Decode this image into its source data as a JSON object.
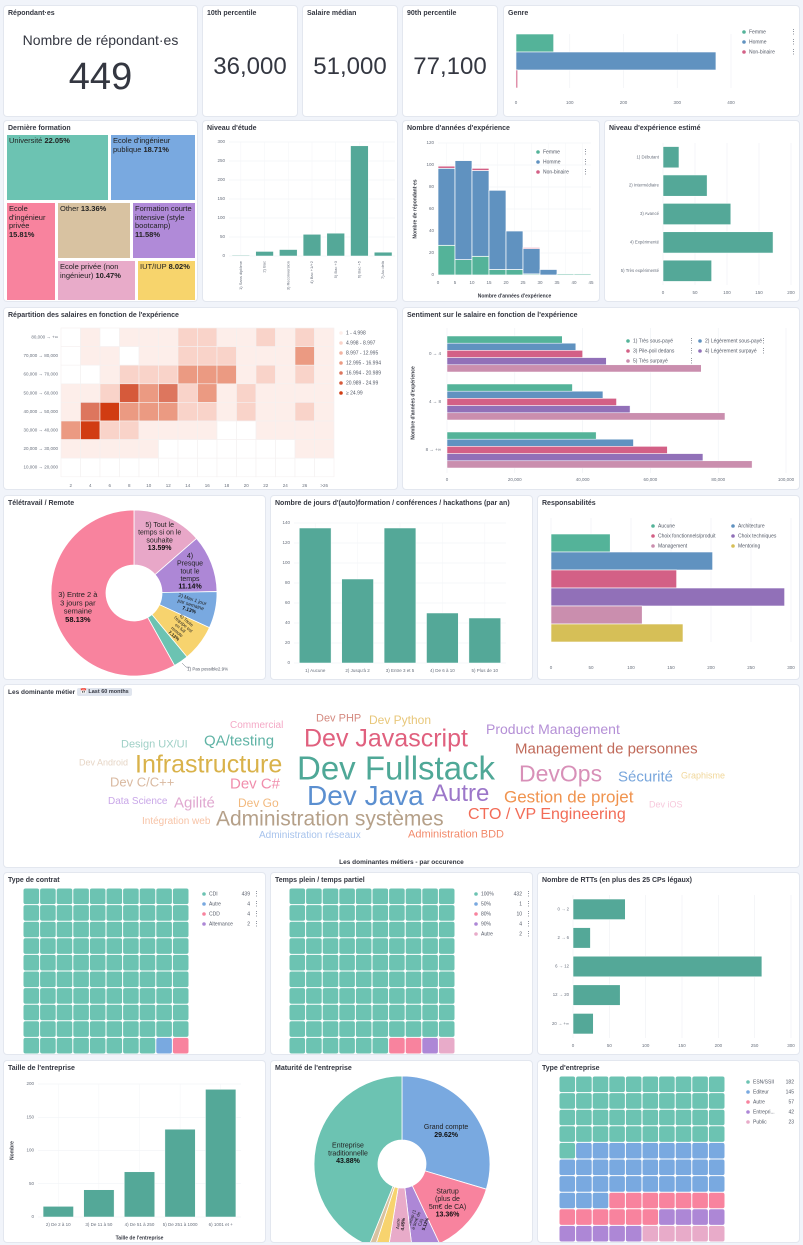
{
  "kpi": {
    "respondents_title": "Répondant·es",
    "respondents_label": "Nombre de répondant·es",
    "respondents_value": "449",
    "p10_title": "10th percentile",
    "p10_value": "36,000",
    "median_title": "Salaire médian",
    "median_value": "51,000",
    "p90_title": "90th percentile",
    "p90_value": "77,100"
  },
  "wordcloud": {
    "title": "Les dominante métier",
    "badge": "Last 60 months",
    "caption": "Les dominantes métiers - par occurence",
    "words": [
      {
        "text": "Commercial",
        "color": "#f4a9c6"
      },
      {
        "text": "Dev PHP",
        "color": "#d48a80"
      },
      {
        "text": "Dev Python",
        "color": "#e8c77a"
      },
      {
        "text": "Product Management",
        "color": "#b48fd6"
      },
      {
        "text": "Dev Javascript",
        "color": "#e0607e"
      },
      {
        "text": "QA/testing",
        "color": "#5fb3a5"
      },
      {
        "text": "Management de personnes",
        "color": "#c06a5a"
      },
      {
        "text": "Design UX/UI",
        "color": "#9fd0c6"
      },
      {
        "text": "Dev Android",
        "color": "#e6d5c5"
      },
      {
        "text": "Infrastructure",
        "color": "#d9b24a"
      },
      {
        "text": "Dev Fullstack",
        "color": "#4fa897"
      },
      {
        "text": "DevOps",
        "color": "#d890b8"
      },
      {
        "text": "Sécurité",
        "color": "#78a6dc"
      },
      {
        "text": "Graphisme",
        "color": "#f1d79a"
      },
      {
        "text": "Dev C/C++",
        "color": "#d9b9a0"
      },
      {
        "text": "Dev C#",
        "color": "#f08eac"
      },
      {
        "text": "Dev Java",
        "color": "#5b8fd0"
      },
      {
        "text": "Autre",
        "color": "#9c77c9"
      },
      {
        "text": "Gestion de projet",
        "color": "#f0934e"
      },
      {
        "text": "Data Science",
        "color": "#c9a7e8"
      },
      {
        "text": "Agilité",
        "color": "#e0a8d0"
      },
      {
        "text": "Dev Go",
        "color": "#f2b97e"
      },
      {
        "text": "Dev iOS",
        "color": "#f7c9dc"
      },
      {
        "text": "Administration systèmes",
        "color": "#b5a089"
      },
      {
        "text": "CTO / VP Engineering",
        "color": "#f26c57"
      },
      {
        "text": "Intégration web",
        "color": "#f7c3a6"
      },
      {
        "text": "Administration réseaux",
        "color": "#a7c3ec"
      },
      {
        "text": "Administration BDD",
        "color": "#f28a6b"
      }
    ]
  },
  "chart_data": [
    {
      "type": "bar",
      "orientation": "horizontal",
      "title": "Genre",
      "categories": [
        "Femme",
        "Homme",
        "Non-binaire"
      ],
      "values": [
        70,
        372,
        3
      ],
      "colors": [
        "#54B399",
        "#6092C0",
        "#D36086"
      ],
      "xlim": [
        0,
        400
      ],
      "xtick": 100,
      "legend": "right",
      "grid": true
    },
    {
      "type": "treemap",
      "title": "Dernière formation",
      "categories": [
        "Université",
        "Ecole d'ingénieur publique",
        "Ecole d'ingénieur privée",
        "Other",
        "Formation courte intensive (style bootcamp)",
        "Ecole privée (non ingénieur)",
        "IUT/IUP"
      ],
      "values": [
        "22.05%",
        "18.71%",
        "15.81%",
        "13.36%",
        "11.58%",
        "10.47%",
        "8.02%"
      ],
      "colors": [
        "#6cc3b2",
        "#79a9e0",
        "#f8839e",
        "#d8c2a1",
        "#b08ad8",
        "#e8abc9",
        "#f7d46c"
      ]
    },
    {
      "type": "bar",
      "title": "Niveau d'étude",
      "categories": [
        "1) Sans diplôme",
        "2) Bac",
        "3) Reconversion",
        "4) Bac +1/+2",
        "5) Bac +3",
        "6) Bac +5",
        "7) Au delà"
      ],
      "values": [
        2,
        12,
        17,
        57,
        60,
        290,
        10
      ],
      "color": "#54a898",
      "ylim": [
        0,
        300
      ],
      "ytick": 50,
      "grid": true
    },
    {
      "type": "bar",
      "stacked": true,
      "title": "Nombre d'années d'expérience",
      "xlabel": "Nombre d'années d'expérience",
      "ylabel": "Nombre de répondant·es",
      "x_ticks": [
        0,
        5,
        10,
        15,
        20,
        25,
        30,
        35,
        40,
        45
      ],
      "series": [
        {
          "name": "Femme",
          "color": "#54B399",
          "values": [
            27,
            14,
            17,
            5,
            5,
            1,
            0,
            1,
            1
          ]
        },
        {
          "name": "Homme",
          "color": "#6092C0",
          "values": [
            70,
            90,
            78,
            72,
            35,
            23,
            5,
            0,
            0
          ]
        },
        {
          "name": "Non-binaire",
          "color": "#D36086",
          "values": [
            2,
            0,
            2,
            0,
            0,
            1,
            0,
            0,
            0
          ]
        }
      ],
      "ylim": [
        0,
        120
      ],
      "ytick": 20,
      "legend": "top-right",
      "grid": true
    },
    {
      "type": "bar",
      "orientation": "horizontal",
      "title": "Niveau d'expérience estimé",
      "categories": [
        "1) Débutant",
        "2) Intermédiaire",
        "3) Avancé",
        "4) Expérimenté",
        "5) Très expérimenté"
      ],
      "values": [
        25,
        69,
        106,
        172,
        76
      ],
      "color": "#54a898",
      "xlim": [
        0,
        200
      ],
      "xtick": 50,
      "grid": true
    },
    {
      "type": "heatmap",
      "title": "Répartition des salaires en fonction de l'expérience",
      "x_categories": [
        "2",
        "4",
        "6",
        "8",
        "10",
        "12",
        "14",
        "16",
        "18",
        "20",
        "22",
        "24",
        "26",
        ">26"
      ],
      "y_categories": [
        "80,000 → +∞",
        "70,000 → 80,000",
        "60,000 → 70,000",
        "50,000 → 60,000",
        "40,000 → 50,000",
        "30,000 → 40,000",
        "20,000 → 30,000",
        "10,000 → 20,000"
      ],
      "legend_buckets": [
        "1 - 4.998",
        "4.998 - 8.997",
        "8.997 - 12.995",
        "12.995 - 16.994",
        "16.994 - 20.989",
        "20.989 - 24.99",
        "≥ 24.99"
      ],
      "bucket_colors": [
        "#fdeeea",
        "#f9d3c9",
        "#f2b3a1",
        "#eb9a82",
        "#dd765e",
        "#d65a3b",
        "#d13c12"
      ],
      "bucket_index": [
        [
          0,
          1,
          0,
          1,
          1,
          1,
          2,
          2,
          1,
          1,
          2,
          1,
          2,
          1
        ],
        [
          0,
          1,
          1,
          0,
          1,
          1,
          2,
          2,
          2,
          1,
          1,
          1,
          4,
          1
        ],
        [
          0,
          0,
          1,
          2,
          2,
          2,
          4,
          4,
          4,
          1,
          2,
          1,
          2,
          1
        ],
        [
          1,
          1,
          2,
          6,
          4,
          5,
          2,
          4,
          1,
          2,
          1,
          1,
          1,
          1
        ],
        [
          1,
          5,
          7,
          4,
          4,
          4,
          2,
          2,
          1,
          2,
          1,
          1,
          2,
          1
        ],
        [
          4,
          7,
          2,
          2,
          1,
          1,
          1,
          1,
          0,
          0,
          1,
          1,
          1,
          1
        ],
        [
          1,
          1,
          1,
          1,
          1,
          0,
          0,
          0,
          0,
          0,
          0,
          0,
          1,
          1
        ],
        [
          0,
          0,
          0,
          0,
          0,
          0,
          0,
          0,
          0,
          0,
          0,
          0,
          0,
          0
        ]
      ],
      "legend": "right"
    },
    {
      "type": "bar",
      "orientation": "horizontal",
      "grouped": true,
      "title": "Sentiment sur le salaire en fonction de l'expérience",
      "ylabel": "Nombre d'années d'expérience",
      "categories": [
        "0 → 4",
        "4 → 8",
        "8 → +∞"
      ],
      "series": [
        {
          "name": "1) Très sous-payé",
          "color": "#54B399",
          "values": [
            34000,
            37000,
            44000
          ]
        },
        {
          "name": "2) Légèrement sous-payé",
          "color": "#6092C0",
          "values": [
            38000,
            46000,
            55000
          ]
        },
        {
          "name": "3) Pile-poil dedans",
          "color": "#D36086",
          "values": [
            40000,
            50000,
            65000
          ]
        },
        {
          "name": "4) Légèrement surpayé",
          "color": "#9170B8",
          "values": [
            47000,
            54000,
            75500
          ]
        },
        {
          "name": "5) Très surpayé",
          "color": "#CA8EAE",
          "values": [
            75000,
            82000,
            90000
          ]
        }
      ],
      "xlim": [
        0,
        100000
      ],
      "xtick": 20000,
      "legend": "top-right",
      "grid": true
    },
    {
      "type": "pie",
      "donut": true,
      "title": "Télétravail / Remote",
      "categories": [
        "5) Tout le temps si on le souhaite",
        "4) Presque tout le temps",
        "2) Max 1 jour par semaine",
        "6) Toute l'équipe est en full remote",
        "1) Pas possible",
        "3) Entre 2 à 3 jours par semaine"
      ],
      "values": [
        13.59,
        11.14,
        7.13,
        7.13,
        2.9,
        58.13
      ],
      "labels": [
        "13.59%",
        "11.14%",
        "7.13%",
        "7.13%",
        "2.9%",
        "58.13%"
      ],
      "colors": [
        "#e8a7c8",
        "#ad87d6",
        "#79a9e0",
        "#f7d36e",
        "#6cc3b2",
        "#f8839e"
      ]
    },
    {
      "type": "bar",
      "title": "Nombre de jours d'(auto)formation / conférences / hackathons (par an)",
      "categories": [
        "1) Aucune",
        "2) Jusqu'à 2",
        "3) Entre 3 et 5",
        "4) De 6 à 10",
        "5) Plus de 10"
      ],
      "values": [
        135,
        84,
        135,
        50,
        45
      ],
      "color": "#54a898",
      "ylim": [
        0,
        140
      ],
      "ytick": 20,
      "grid": true
    },
    {
      "type": "bar",
      "orientation": "horizontal",
      "title": "Responsabilités",
      "categories": [
        "Aucune",
        "Architecture",
        "Choix fonctionnels/produit",
        "Choix techniques",
        "Management",
        "Mentoring"
      ],
      "values": [
        74,
        202,
        157,
        292,
        114,
        165
      ],
      "colors": [
        "#54B399",
        "#6092C0",
        "#D36086",
        "#9170B8",
        "#CA8EAE",
        "#D6BF57"
      ],
      "xlim": [
        0,
        300
      ],
      "xtick": 50,
      "legend": "top-right",
      "grid": true
    },
    {
      "type": "waffle",
      "title": "Type de contrat",
      "categories": [
        "CDI",
        "Autre",
        "CDD",
        "Alternance"
      ],
      "values": [
        439,
        4,
        4,
        2
      ],
      "colors": [
        "#6cc3b2",
        "#79a9e0",
        "#f8839e",
        "#ad87d6"
      ],
      "legend": "right"
    },
    {
      "type": "waffle",
      "title": "Temps plein / temps partiel",
      "categories": [
        "100%",
        "50%",
        "80%",
        "90%",
        "Autre"
      ],
      "values": [
        432,
        1,
        10,
        4,
        2
      ],
      "colors": [
        "#6cc3b2",
        "#79a9e0",
        "#f8839e",
        "#ad87d6",
        "#e8abc9"
      ],
      "legend": "right"
    },
    {
      "type": "bar",
      "orientation": "horizontal",
      "title": "Nombre de RTTs (en plus des 25 CPs légaux)",
      "categories": [
        "0 → 2",
        "2 → 6",
        "6 → 12",
        "12 → 20",
        "20 → +∞"
      ],
      "values": [
        72,
        24,
        260,
        65,
        28
      ],
      "color": "#54a898",
      "xlim": [
        0,
        300
      ],
      "xtick": 50,
      "grid": true
    },
    {
      "type": "bar",
      "title": "Taille de l'entreprise",
      "xlabel": "Taille de l'entreprise",
      "ylabel": "Nombre",
      "categories": [
        "2) De 2 à 10",
        "3) De 11 à 50",
        "4) De 51 à 250",
        "5) De 251 à 1000",
        "6) 1001 et +"
      ],
      "values": [
        16,
        41,
        68,
        132,
        192
      ],
      "color": "#54a898",
      "ylim": [
        0,
        200
      ],
      "ytick": 50,
      "grid": true
    },
    {
      "type": "pie",
      "donut": true,
      "title": "Maturité de l'entreprise",
      "categories": [
        "Grand compte",
        "Startup (plus de 5m€ de CA)",
        "Startup (1 à 5m€ de CA)",
        "Autre",
        "",
        "Startup sans levée",
        "Entreprise traditionnelle"
      ],
      "values": [
        29.62,
        13.36,
        5.12,
        4.45,
        2.46,
        1.11,
        43.88
      ],
      "labels": [
        "29.62%",
        "13.36%",
        "5.12%",
        "4.45%",
        "",
        "1.11%",
        "43.88%"
      ],
      "colors": [
        "#79a9e0",
        "#f8839e",
        "#ad87d6",
        "#e8abc9",
        "#f7d36e",
        "#d8c2a1",
        "#6cc3b2"
      ]
    },
    {
      "type": "waffle",
      "title": "Type d'entreprise",
      "categories": [
        "ESN/SSII",
        "Editeur",
        "Autre",
        "Entrepri...",
        "Public"
      ],
      "values": [
        182,
        145,
        57,
        42,
        23
      ],
      "colors": [
        "#6cc3b2",
        "#79a9e0",
        "#f8839e",
        "#ad87d6",
        "#e8abc9"
      ],
      "legend": "right"
    }
  ]
}
